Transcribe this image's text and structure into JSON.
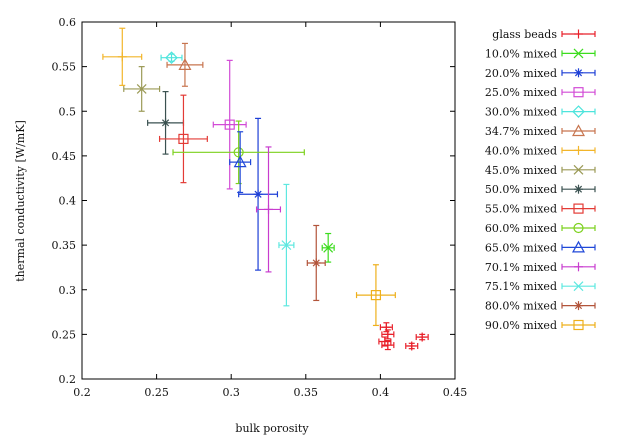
{
  "chart_data": {
    "type": "scatter",
    "title": "",
    "xlabel": "bulk porosity",
    "ylabel": "thermal conductivity [W/mK]",
    "xlim": [
      0.2,
      0.45
    ],
    "ylim": [
      0.2,
      0.6
    ],
    "x_ticks": [
      0.2,
      0.25,
      0.3,
      0.35,
      0.4,
      0.45
    ],
    "y_ticks": [
      0.2,
      0.25,
      0.3,
      0.35,
      0.4,
      0.45,
      0.5,
      0.55,
      0.6
    ],
    "x_tick_labels": [
      "0.2",
      "0.25",
      "0.3",
      "0.35",
      "0.4",
      "0.45"
    ],
    "y_tick_labels": [
      "0.2",
      "0.25",
      "0.3",
      "0.35",
      "0.4",
      "0.45",
      "0.5",
      "0.55",
      "0.6"
    ],
    "grid": false,
    "legend_position": "right",
    "error_bars": true,
    "series": [
      {
        "name": "glass beads",
        "color": "#e8202a",
        "marker": "plus",
        "points": [
          {
            "x": 0.404,
            "y": 0.258,
            "xerr": 0.004,
            "yerr": 0.005
          },
          {
            "x": 0.405,
            "y": 0.25,
            "xerr": 0.004,
            "yerr": 0.005
          },
          {
            "x": 0.403,
            "y": 0.242,
            "xerr": 0.004,
            "yerr": 0.005
          },
          {
            "x": 0.405,
            "y": 0.238,
            "xerr": 0.004,
            "yerr": 0.005
          },
          {
            "x": 0.421,
            "y": 0.237,
            "xerr": 0.004,
            "yerr": 0.003
          },
          {
            "x": 0.428,
            "y": 0.247,
            "xerr": 0.004,
            "yerr": 0.003
          }
        ]
      },
      {
        "name": "10.0% mixed",
        "color": "#3cdc1e",
        "marker": "cross",
        "points": [
          {
            "x": 0.365,
            "y": 0.347,
            "xerr": 0.004,
            "yerr": 0.016
          }
        ]
      },
      {
        "name": "20.0% mixed",
        "color": "#1d3fd6",
        "marker": "star",
        "points": [
          {
            "x": 0.318,
            "y": 0.407,
            "xerr": 0.013,
            "yerr": 0.085
          }
        ]
      },
      {
        "name": "25.0% mixed",
        "color": "#d24bd6",
        "marker": "square",
        "points": [
          {
            "x": 0.299,
            "y": 0.485,
            "xerr": 0.011,
            "yerr": 0.072
          }
        ]
      },
      {
        "name": "30.0% mixed",
        "color": "#4de4dc",
        "marker": "diamond",
        "points": [
          {
            "x": 0.26,
            "y": 0.56,
            "xerr": 0.007,
            "yerr": 0.004
          }
        ]
      },
      {
        "name": "34.7% mixed",
        "color": "#c7754f",
        "marker": "triangle",
        "points": [
          {
            "x": 0.269,
            "y": 0.552,
            "xerr": 0.012,
            "yerr": 0.024
          }
        ]
      },
      {
        "name": "40.0% mixed",
        "color": "#f2b52a",
        "marker": "plus",
        "points": [
          {
            "x": 0.227,
            "y": 0.561,
            "xerr": 0.013,
            "yerr": 0.032
          }
        ]
      },
      {
        "name": "45.0% mixed",
        "color": "#9b9a56",
        "marker": "cross",
        "points": [
          {
            "x": 0.24,
            "y": 0.525,
            "xerr": 0.012,
            "yerr": 0.025
          }
        ]
      },
      {
        "name": "50.0% mixed",
        "color": "#3a5150",
        "marker": "star",
        "points": [
          {
            "x": 0.256,
            "y": 0.487,
            "xerr": 0.012,
            "yerr": 0.035
          }
        ]
      },
      {
        "name": "55.0% mixed",
        "color": "#e33b36",
        "marker": "square",
        "points": [
          {
            "x": 0.268,
            "y": 0.469,
            "xerr": 0.016,
            "yerr": 0.049
          }
        ]
      },
      {
        "name": "60.0% mixed",
        "color": "#7cd11d",
        "marker": "circle",
        "points": [
          {
            "x": 0.305,
            "y": 0.454,
            "xerr": 0.044,
            "yerr": 0.035
          }
        ]
      },
      {
        "name": "65.0% mixed",
        "color": "#2048d8",
        "marker": "triangle",
        "points": [
          {
            "x": 0.306,
            "y": 0.443,
            "xerr": 0.007,
            "yerr": 0.034
          }
        ]
      },
      {
        "name": "70.1% mixed",
        "color": "#c83ccf",
        "marker": "plus",
        "points": [
          {
            "x": 0.325,
            "y": 0.39,
            "xerr": 0.008,
            "yerr": 0.07
          }
        ]
      },
      {
        "name": "75.1% mixed",
        "color": "#5ee8e0",
        "marker": "cross",
        "points": [
          {
            "x": 0.337,
            "y": 0.35,
            "xerr": 0.005,
            "yerr": 0.068
          }
        ]
      },
      {
        "name": "80.0% mixed",
        "color": "#b2543a",
        "marker": "star",
        "points": [
          {
            "x": 0.357,
            "y": 0.33,
            "xerr": 0.006,
            "yerr": 0.042
          }
        ]
      },
      {
        "name": "90.0% mixed",
        "color": "#eeb01c",
        "marker": "square",
        "points": [
          {
            "x": 0.397,
            "y": 0.294,
            "xerr": 0.013,
            "yerr": 0.034
          }
        ]
      }
    ]
  }
}
